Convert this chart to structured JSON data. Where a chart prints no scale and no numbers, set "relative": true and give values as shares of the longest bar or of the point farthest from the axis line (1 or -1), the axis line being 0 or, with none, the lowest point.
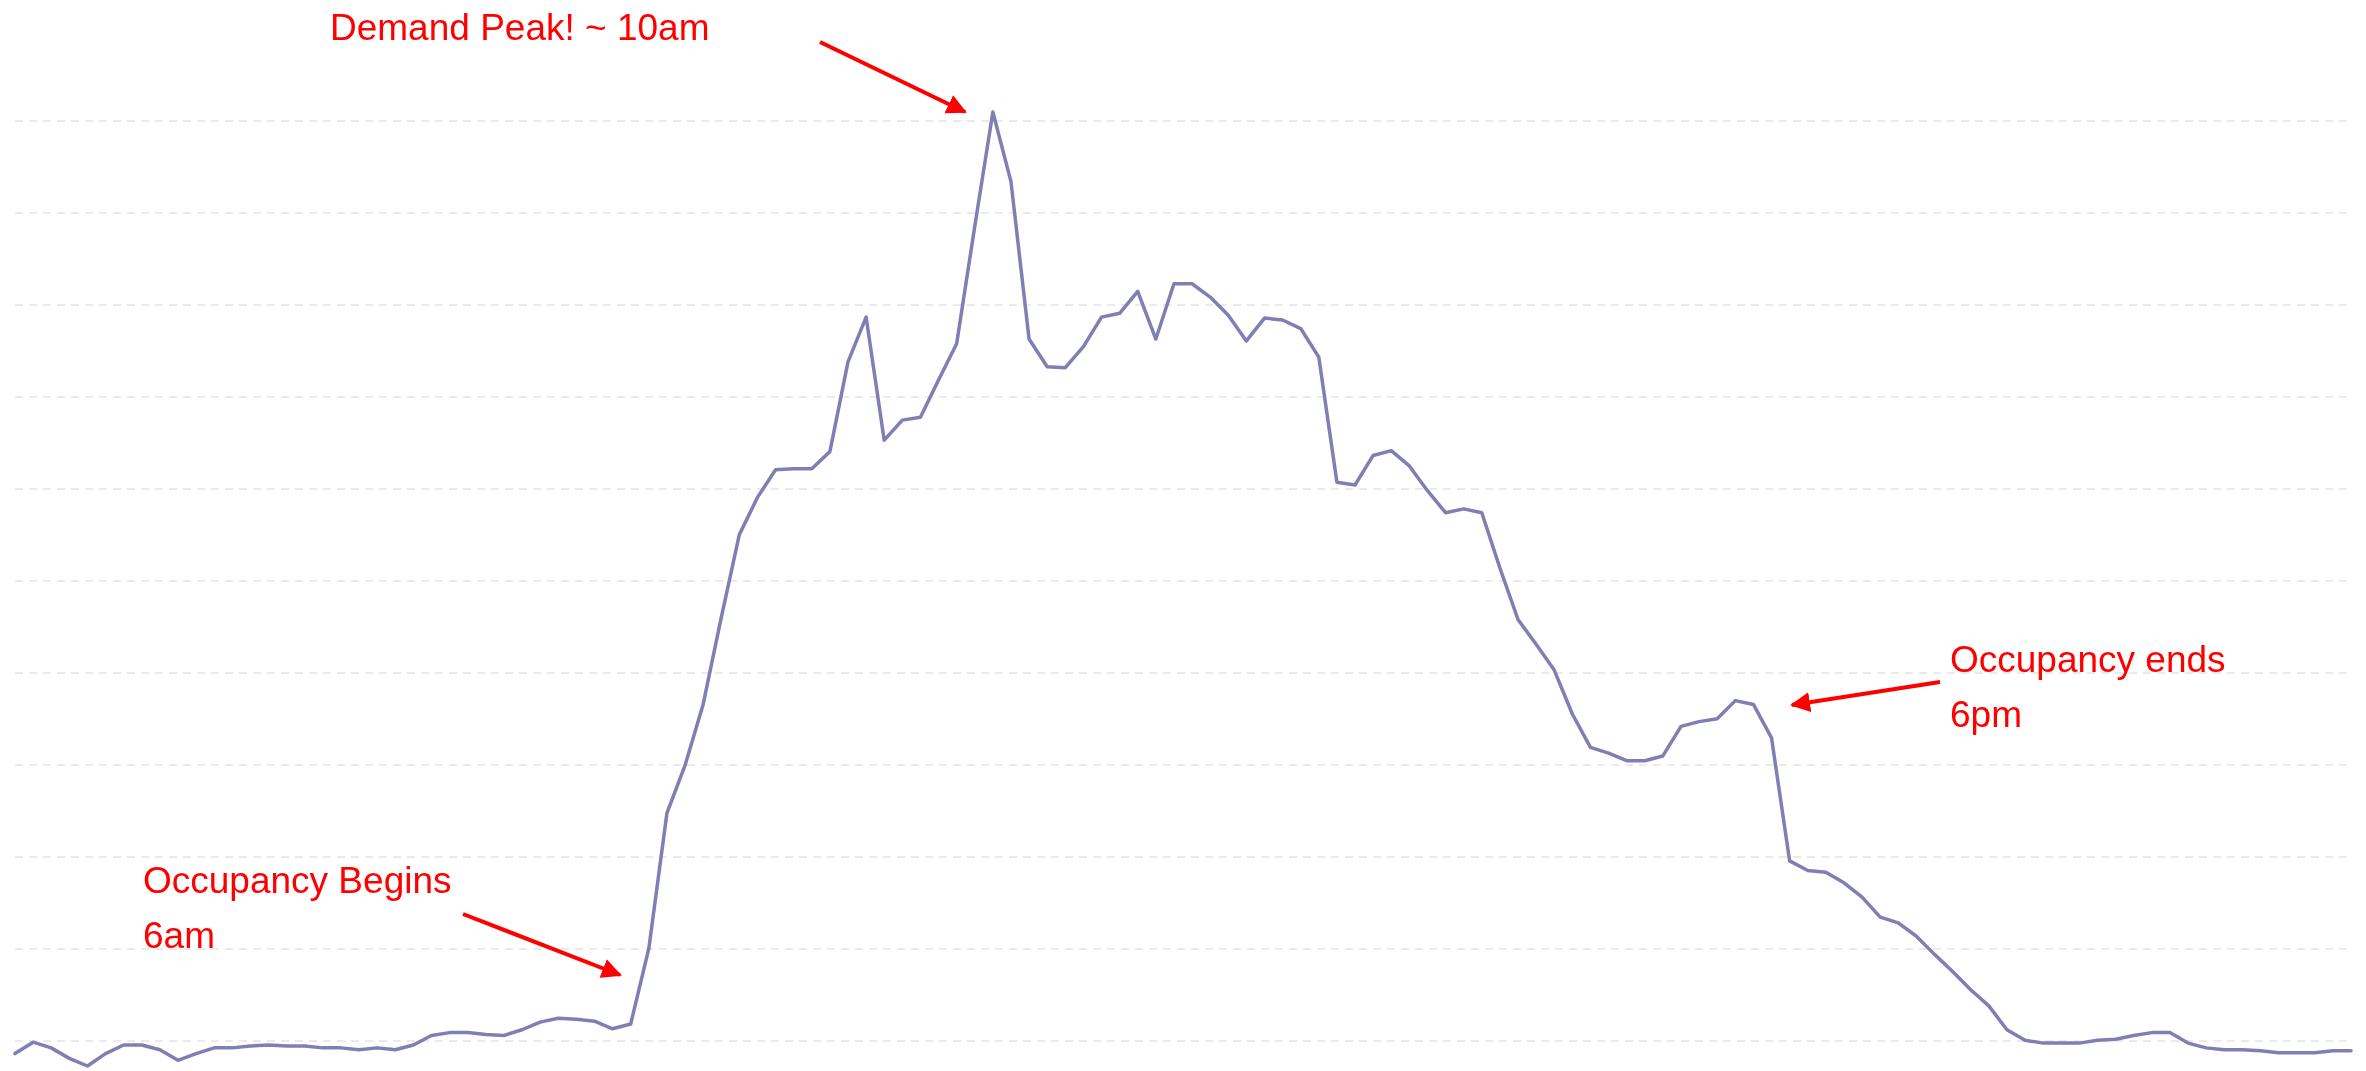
{
  "chart_data": {
    "type": "line",
    "relative": true,
    "grid": "y",
    "categories": [
      null,
      null,
      null,
      null,
      null,
      null,
      null,
      null,
      null,
      null,
      null,
      null,
      null,
      null,
      null,
      null,
      null,
      null,
      null,
      null,
      null,
      null,
      null,
      null,
      null,
      null,
      null,
      null,
      null,
      null,
      null,
      null,
      null,
      null,
      null,
      null,
      null,
      null,
      null,
      null,
      null,
      null,
      null,
      null,
      null,
      null,
      null,
      null,
      null,
      null,
      null,
      null,
      null,
      null,
      null,
      null,
      null,
      null,
      null,
      null,
      null,
      null,
      null,
      null,
      null,
      null,
      null,
      null,
      null,
      null,
      null,
      null,
      null,
      null,
      null,
      null,
      null,
      null,
      null,
      null,
      null,
      null,
      null,
      null,
      null,
      null,
      null,
      null,
      null,
      null,
      null,
      null,
      null,
      null,
      null,
      null,
      null,
      null,
      null,
      null,
      null,
      null,
      null,
      null,
      null,
      null,
      null,
      null,
      null,
      null,
      null,
      null,
      null,
      null,
      null,
      null,
      null,
      null,
      null,
      null,
      null,
      null,
      null,
      null,
      null,
      null,
      null,
      null,
      null,
      null
    ],
    "series": [
      {
        "color": "#7f7fb3",
        "values": [
          0.013,
          0.025,
          0.019,
          0.008,
          0,
          0.013,
          0.022,
          0.022,
          0.017,
          0.006,
          0.013,
          0.019,
          0.019,
          0.021,
          0.022,
          0.021,
          0.021,
          0.019,
          0.019,
          0.017,
          0.019,
          0.017,
          0.022,
          0.032,
          0.035,
          0.035,
          0.033,
          0.032,
          0.038,
          0.046,
          0.05,
          0.049,
          0.047,
          0.039,
          0.044,
          0.123,
          0.265,
          0.315,
          0.379,
          0.47,
          0.557,
          0.596,
          0.625,
          0.626,
          0.626,
          0.644,
          0.738,
          0.785,
          0.656,
          0.677,
          0.68,
          0.719,
          0.757,
          0.88,
          1,
          0.927,
          0.762,
          0.733,
          0.732,
          0.754,
          0.785,
          0.789,
          0.812,
          0.762,
          0.82,
          0.82,
          0.806,
          0.787,
          0.76,
          0.784,
          0.782,
          0.773,
          0.743,
          0.612,
          0.609,
          0.64,
          0.645,
          0.629,
          0.603,
          0.58,
          0.584,
          0.58,
          0.522,
          0.468,
          0.442,
          0.415,
          0.369,
          0.334,
          0.328,
          0.32,
          0.32,
          0.325,
          0.356,
          0.361,
          0.364,
          0.383,
          0.379,
          0.344,
          0.215,
          0.205,
          0.203,
          0.192,
          0.177,
          0.156,
          0.15,
          0.136,
          0.117,
          0.099,
          0.08,
          0.063,
          0.038,
          0.027,
          0.024,
          0.024,
          0.024,
          0.027,
          0.028,
          0.032,
          0.035,
          0.035,
          0.024,
          0.019,
          0.017,
          0.017,
          0.016,
          0.014,
          0.014,
          0.014,
          0.016,
          0.016
        ]
      }
    ],
    "annotations": [
      "Demand Peak!  ~ 10am",
      "Occupancy Begins\n6am",
      "Occupancy ends\n6pm"
    ]
  }
}
